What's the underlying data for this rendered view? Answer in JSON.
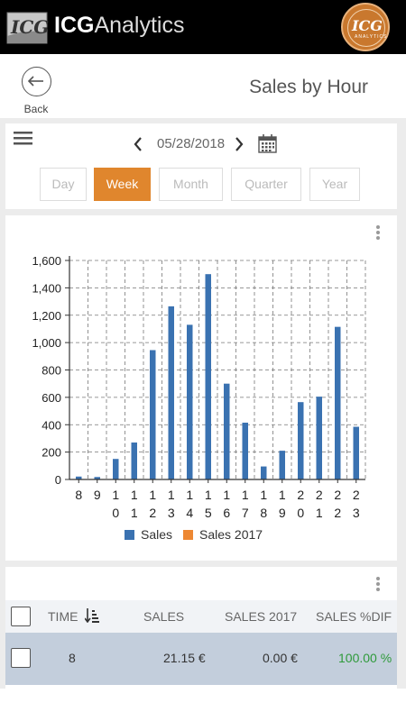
{
  "app": {
    "brand_bold": "ICG",
    "brand_light": "Analytics",
    "logo_text": "ICG",
    "avatar_text": "ICG",
    "avatar_subtext": "ANALYTICS"
  },
  "header": {
    "back_label": "Back",
    "title": "Sales by Hour"
  },
  "date_nav": {
    "date": "05/28/2018"
  },
  "period_tabs": [
    {
      "label": "Day",
      "active": false
    },
    {
      "label": "Week",
      "active": true
    },
    {
      "label": "Month",
      "active": false
    },
    {
      "label": "Quarter",
      "active": false
    },
    {
      "label": "Year",
      "active": false
    }
  ],
  "colors": {
    "accent": "#e0862d",
    "sales_series": "#3a72b1",
    "sales2017_series": "#ed8833",
    "positive": "#2e9a3a",
    "selected_row": "#c3cedc"
  },
  "chart_data": {
    "type": "bar",
    "categories": [
      "8",
      "9",
      "10",
      "11",
      "12",
      "13",
      "14",
      "15",
      "16",
      "17",
      "18",
      "19",
      "20",
      "21",
      "22",
      "23"
    ],
    "series": [
      {
        "name": "Sales",
        "values": [
          21.15,
          18,
          150,
          270,
          945,
          1265,
          1130,
          1500,
          700,
          415,
          95,
          210,
          565,
          605,
          1115,
          385
        ]
      },
      {
        "name": "Sales 2017",
        "values": [
          0,
          0,
          0,
          0,
          0,
          0,
          0,
          0,
          0,
          0,
          0,
          0,
          0,
          0,
          0,
          0
        ]
      }
    ],
    "ylim": [
      0,
      1600
    ],
    "yticks": [
      "0",
      "200",
      "400",
      "600",
      "800",
      "1,000",
      "1,200",
      "1,400",
      "1,600"
    ],
    "grid": true,
    "legend_position": "bottom"
  },
  "table": {
    "columns": [
      "TIME",
      "SALES",
      "SALES 2017",
      "SALES %DIF"
    ],
    "rows": [
      {
        "time": "8",
        "sales": "21.15 €",
        "sales_2017": "0.00 €",
        "sales_dif": "100.00 %"
      }
    ]
  }
}
